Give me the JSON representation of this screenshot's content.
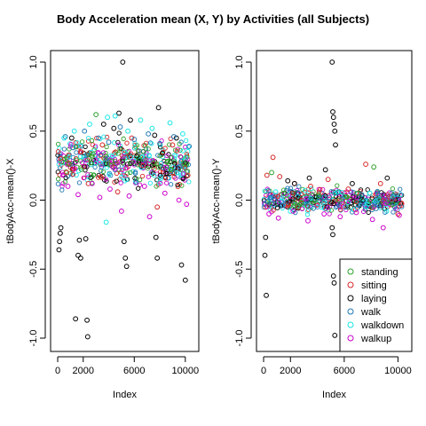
{
  "title": "Body Acceleration mean (X, Y) by Activities (all Subjects)",
  "colors": {
    "standing": "#2ca02c",
    "sitting": "#d62728",
    "laying": "#000000",
    "walk": "#1f77b4",
    "walkdown": "#17e5e5",
    "walkup": "#cc00cc"
  },
  "chart_data": [
    {
      "type": "scatter",
      "title": "",
      "xlabel": "Index",
      "ylabel": "tBodyAcc-mean()-X",
      "xlim": [
        0,
        10500
      ],
      "ylim": [
        -1.0,
        1.0
      ],
      "x_ticks": [
        0,
        2000,
        6000,
        10000
      ],
      "y_ticks": [
        -1.0,
        -0.5,
        0.0,
        0.5,
        1.0
      ],
      "y_tick_labels": [
        "-1.0",
        "-0.5",
        "0.0",
        "0.5",
        "1.0"
      ],
      "x_tick_labels": [
        "0",
        "2000",
        "6000",
        "10000"
      ],
      "point_shape": "open-circle",
      "series": [
        {
          "name": "standing",
          "points": [
            [
              300,
              0.28
            ],
            [
              900,
              0.26
            ],
            [
              1500,
              0.29
            ],
            [
              2600,
              0.27
            ],
            [
              3000,
              0.62
            ],
            [
              4200,
              0.28
            ],
            [
              5100,
              0.27
            ],
            [
              6400,
              0.3
            ],
            [
              7500,
              0.27
            ],
            [
              8600,
              0.28
            ],
            [
              9900,
              0.27
            ]
          ]
        },
        {
          "name": "sitting",
          "points": [
            [
              250,
              0.3
            ],
            [
              700,
              0.2
            ],
            [
              1800,
              0.35
            ],
            [
              2400,
              0.12
            ],
            [
              3500,
              0.4
            ],
            [
              4700,
              0.06
            ],
            [
              5800,
              0.45
            ],
            [
              6700,
              0.25
            ],
            [
              7800,
              -0.05
            ],
            [
              9000,
              0.4
            ],
            [
              10200,
              0.18
            ]
          ]
        },
        {
          "name": "laying",
          "points": [
            [
              100,
              -0.36
            ],
            [
              150,
              -0.3
            ],
            [
              200,
              -0.24
            ],
            [
              250,
              -0.2
            ],
            [
              1400,
              -0.86
            ],
            [
              1600,
              -0.4
            ],
            [
              1700,
              -0.29
            ],
            [
              1800,
              -0.42
            ],
            [
              2300,
              -0.87
            ],
            [
              2350,
              -0.99
            ],
            [
              2200,
              -0.28
            ],
            [
              5100,
              1.0
            ],
            [
              5200,
              -0.3
            ],
            [
              5300,
              -0.42
            ],
            [
              5400,
              -0.48
            ],
            [
              7600,
              0.47
            ],
            [
              7900,
              0.67
            ],
            [
              8200,
              0.34
            ],
            [
              9700,
              -0.47
            ],
            [
              10000,
              -0.58
            ],
            [
              7700,
              -0.27
            ],
            [
              7800,
              -0.42
            ],
            [
              3600,
              0.55
            ],
            [
              4400,
              0.52
            ],
            [
              4800,
              0.63
            ],
            [
              5700,
              0.58
            ],
            [
              6200,
              0.32
            ],
            [
              9300,
              0.45
            ],
            [
              1100,
              0.45
            ]
          ]
        },
        {
          "name": "walk",
          "points": [
            [
              600,
              0.46
            ],
            [
              1200,
              0.38
            ],
            [
              2100,
              0.5
            ],
            [
              3200,
              0.45
            ],
            [
              4000,
              0.42
            ],
            [
              4900,
              0.53
            ],
            [
              6000,
              0.44
            ],
            [
              7100,
              0.48
            ],
            [
              8000,
              0.41
            ],
            [
              9100,
              0.46
            ],
            [
              10300,
              0.39
            ]
          ]
        },
        {
          "name": "walkdown",
          "points": [
            [
              500,
              0.45
            ],
            [
              1300,
              0.5
            ],
            [
              2500,
              0.55
            ],
            [
              3800,
              -0.16
            ],
            [
              3900,
              0.6
            ],
            [
              4500,
              0.61
            ],
            [
              5500,
              0.5
            ],
            [
              6500,
              0.58
            ],
            [
              7400,
              0.52
            ],
            [
              8800,
              0.56
            ],
            [
              9800,
              0.48
            ]
          ]
        },
        {
          "name": "walkup",
          "points": [
            [
              800,
              0.1
            ],
            [
              1600,
              0.04
            ],
            [
              2700,
              0.12
            ],
            [
              3300,
              0.02
            ],
            [
              4100,
              0.08
            ],
            [
              5000,
              -0.08
            ],
            [
              5600,
              0.03
            ],
            [
              6800,
              0.1
            ],
            [
              7200,
              -0.12
            ],
            [
              8400,
              0.05
            ],
            [
              9500,
              0.0
            ],
            [
              10100,
              -0.03
            ]
          ]
        }
      ]
    },
    {
      "type": "scatter",
      "title": "",
      "xlabel": "Index",
      "ylabel": "tBodyAcc-mean()-Y",
      "xlim": [
        0,
        10500
      ],
      "ylim": [
        -1.0,
        1.0
      ],
      "x_ticks": [
        0,
        2000,
        6000,
        10000
      ],
      "y_ticks": [
        -1.0,
        -0.5,
        0.0,
        0.5,
        1.0
      ],
      "y_tick_labels": [
        "-1.0",
        "-0.5",
        "0.0",
        "0.5",
        "1.0"
      ],
      "x_tick_labels": [
        "0",
        "2000",
        "6000",
        "10000"
      ],
      "point_shape": "open-circle",
      "series": [
        {
          "name": "standing",
          "points": [
            [
              600,
              0.2
            ],
            [
              1500,
              0.05
            ],
            [
              2800,
              -0.02
            ],
            [
              4100,
              0.03
            ],
            [
              5600,
              0.0
            ],
            [
              7000,
              0.05
            ],
            [
              8200,
              0.24
            ],
            [
              9600,
              -0.03
            ]
          ]
        },
        {
          "name": "sitting",
          "points": [
            [
              250,
              0.18
            ],
            [
              700,
              0.31
            ],
            [
              1200,
              0.17
            ],
            [
              2300,
              0.12
            ],
            [
              3500,
              0.1
            ],
            [
              4800,
              0.15
            ],
            [
              6300,
              0.08
            ],
            [
              7600,
              0.26
            ],
            [
              8700,
              0.12
            ],
            [
              10000,
              -0.1
            ]
          ]
        },
        {
          "name": "laying",
          "points": [
            [
              100,
              -0.4
            ],
            [
              150,
              -0.27
            ],
            [
              200,
              -0.69
            ],
            [
              5100,
              1.0
            ],
            [
              5150,
              0.64
            ],
            [
              5200,
              0.6
            ],
            [
              5250,
              0.55
            ],
            [
              5300,
              0.5
            ],
            [
              5350,
              0.4
            ],
            [
              5100,
              -0.2
            ],
            [
              5150,
              -0.25
            ],
            [
              5200,
              -0.55
            ],
            [
              5250,
              -0.6
            ],
            [
              5300,
              -0.98
            ],
            [
              2300,
              0.12
            ],
            [
              3400,
              0.16
            ],
            [
              4600,
              0.22
            ],
            [
              6600,
              0.12
            ],
            [
              9200,
              0.16
            ],
            [
              1800,
              0.14
            ]
          ]
        },
        {
          "name": "walk",
          "points": [
            [
              500,
              0.02
            ],
            [
              1400,
              -0.04
            ],
            [
              2600,
              0.05
            ],
            [
              3700,
              -0.06
            ],
            [
              4900,
              0.02
            ],
            [
              6100,
              -0.05
            ],
            [
              7300,
              0.04
            ],
            [
              8500,
              -0.03
            ],
            [
              9700,
              0.03
            ]
          ]
        },
        {
          "name": "walkdown",
          "points": [
            [
              900,
              0.06
            ],
            [
              2000,
              -0.08
            ],
            [
              3100,
              0.07
            ],
            [
              4300,
              -0.05
            ],
            [
              5500,
              0.06
            ],
            [
              6700,
              -0.07
            ],
            [
              7900,
              0.05
            ],
            [
              9100,
              -0.06
            ],
            [
              10200,
              0.04
            ]
          ]
        },
        {
          "name": "walkup",
          "points": [
            [
              400,
              -0.1
            ],
            [
              1100,
              -0.13
            ],
            [
              2200,
              -0.08
            ],
            [
              3300,
              -0.15
            ],
            [
              4500,
              -0.1
            ],
            [
              5700,
              -0.12
            ],
            [
              6900,
              -0.09
            ],
            [
              8100,
              -0.14
            ],
            [
              8900,
              -0.2
            ],
            [
              10100,
              -0.11
            ]
          ]
        }
      ]
    }
  ],
  "legend": {
    "items": [
      "standing",
      "sitting",
      "laying",
      "walk",
      "walkdown",
      "walkup"
    ]
  }
}
